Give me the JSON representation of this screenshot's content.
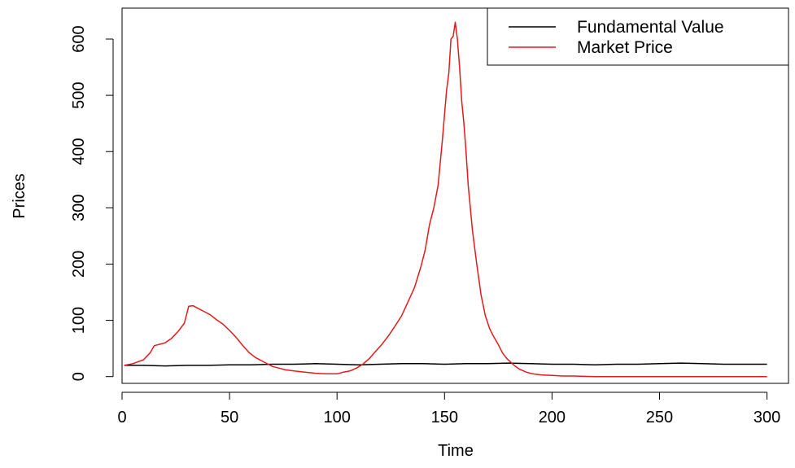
{
  "chart_data": {
    "type": "line",
    "title": "",
    "xlabel": "Time",
    "ylabel": "Prices",
    "xlim": [
      0,
      310
    ],
    "ylim": [
      -12,
      655
    ],
    "x_ticks": [
      0,
      50,
      100,
      150,
      200,
      250,
      300
    ],
    "y_ticks": [
      0,
      100,
      200,
      300,
      400,
      500,
      600
    ],
    "grid": false,
    "legend_position": "top-right",
    "series": [
      {
        "name": "Fundamental Value",
        "color": "#000000",
        "x": [
          1,
          10,
          20,
          30,
          40,
          50,
          60,
          70,
          80,
          90,
          100,
          110,
          120,
          130,
          140,
          150,
          160,
          170,
          180,
          190,
          200,
          210,
          220,
          230,
          240,
          250,
          260,
          270,
          280,
          290,
          300
        ],
        "y": [
          20,
          20,
          19,
          20,
          20,
          21,
          21,
          22,
          22,
          23,
          22,
          21,
          22,
          23,
          23,
          22,
          23,
          23,
          24,
          23,
          22,
          22,
          21,
          22,
          22,
          23,
          24,
          23,
          22,
          22,
          22
        ]
      },
      {
        "name": "Market Price",
        "color": "#e41a1c",
        "x": [
          1,
          5,
          10,
          13,
          15,
          18,
          20,
          23,
          26,
          29,
          31,
          33,
          35,
          38,
          41,
          44,
          47,
          50,
          53,
          56,
          59,
          62,
          65,
          68,
          70,
          73,
          76,
          80,
          85,
          90,
          95,
          100,
          103,
          106,
          109,
          112,
          115,
          118,
          121,
          124,
          127,
          130,
          133,
          136,
          139,
          141,
          143,
          145,
          147,
          149,
          151,
          152,
          153,
          154,
          155,
          156,
          157,
          158,
          159,
          160,
          161,
          162,
          163,
          165,
          167,
          169,
          171,
          173,
          175,
          177,
          179,
          181,
          183,
          185,
          188,
          191,
          195,
          200,
          205,
          210,
          220,
          230,
          240,
          250,
          260,
          270,
          280,
          290,
          300
        ],
        "y": [
          20,
          23,
          30,
          42,
          55,
          58,
          60,
          68,
          80,
          95,
          125,
          126,
          122,
          116,
          110,
          101,
          93,
          82,
          70,
          56,
          43,
          34,
          28,
          22,
          18,
          15,
          12,
          10,
          8,
          6,
          5,
          5,
          8,
          10,
          15,
          22,
          32,
          45,
          58,
          73,
          90,
          108,
          133,
          158,
          195,
          225,
          270,
          300,
          340,
          420,
          510,
          540,
          600,
          605,
          630,
          600,
          550,
          490,
          450,
          400,
          340,
          300,
          260,
          200,
          145,
          108,
          85,
          70,
          57,
          42,
          32,
          25,
          18,
          13,
          8,
          5,
          3,
          2,
          1,
          1,
          0,
          0,
          0,
          0,
          0,
          0,
          0,
          0,
          0
        ]
      }
    ]
  }
}
